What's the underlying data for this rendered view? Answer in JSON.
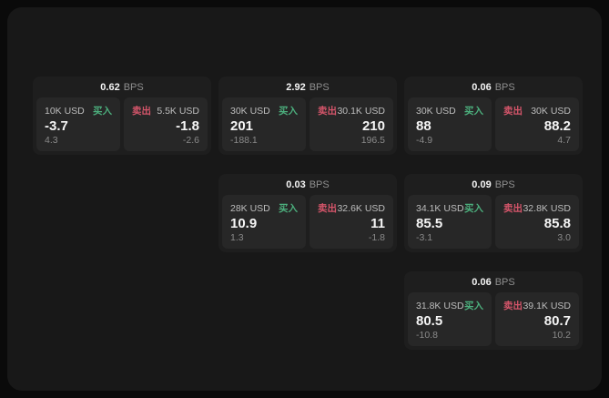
{
  "colors": {
    "page_bg": "#0a0a0a",
    "container_bg": "#181818",
    "card_bg": "#1e1e1e",
    "panel_bg": "#272727",
    "buy_color": "#4caf7d",
    "sell_color": "#d4556a",
    "value_color": "#f5f5f5",
    "label_color": "#bdbdbd",
    "muted_color": "#8a8a8a"
  },
  "labels": {
    "bps_suffix": "BPS",
    "buy": "买入",
    "sell": "卖出"
  },
  "cards": [
    {
      "row": 1,
      "col": 1,
      "bps": "0.62",
      "buy": {
        "amount": "10K USD",
        "price": "-3.7",
        "delta": "4.3"
      },
      "sell": {
        "amount": "5.5K USD",
        "price": "-1.8",
        "delta": "-2.6"
      }
    },
    {
      "row": 1,
      "col": 2,
      "bps": "2.92",
      "buy": {
        "amount": "30K USD",
        "price": "201",
        "delta": "-188.1"
      },
      "sell": {
        "amount": "30.1K USD",
        "price": "210",
        "delta": "196.5"
      }
    },
    {
      "row": 1,
      "col": 3,
      "bps": "0.06",
      "buy": {
        "amount": "30K USD",
        "price": "88",
        "delta": "-4.9"
      },
      "sell": {
        "amount": "30K USD",
        "price": "88.2",
        "delta": "4.7"
      }
    },
    {
      "row": 2,
      "col": 2,
      "bps": "0.03",
      "buy": {
        "amount": "28K USD",
        "price": "10.9",
        "delta": "1.3"
      },
      "sell": {
        "amount": "32.6K USD",
        "price": "11",
        "delta": "-1.8"
      }
    },
    {
      "row": 2,
      "col": 3,
      "bps": "0.09",
      "buy": {
        "amount": "34.1K USD",
        "price": "85.5",
        "delta": "-3.1"
      },
      "sell": {
        "amount": "32.8K USD",
        "price": "85.8",
        "delta": "3.0"
      }
    },
    {
      "row": 3,
      "col": 3,
      "bps": "0.06",
      "buy": {
        "amount": "31.8K USD",
        "price": "80.5",
        "delta": "-10.8"
      },
      "sell": {
        "amount": "39.1K USD",
        "price": "80.7",
        "delta": "10.2"
      }
    }
  ]
}
